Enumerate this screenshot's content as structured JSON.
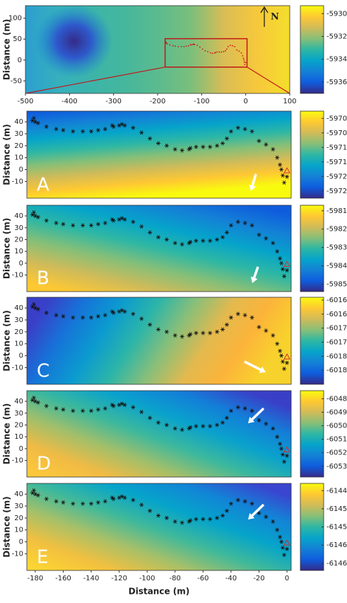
{
  "track": {
    "x": [
      -181,
      -182,
      -180,
      -178,
      -172,
      -165,
      -160,
      -153,
      -146,
      -140,
      -135,
      -130,
      -125,
      -124,
      -120,
      -118,
      -116,
      -110,
      -104,
      -98,
      -92,
      -86,
      -80,
      -75,
      -70,
      -69,
      -65,
      -60,
      -55,
      -50,
      -46,
      -43,
      -40,
      -35,
      -30,
      -25,
      -20,
      -15,
      -10,
      -7,
      -5,
      -4,
      -3,
      0,
      -2
    ],
    "y": [
      43,
      41,
      40,
      39,
      36,
      34,
      33,
      32,
      32,
      32,
      33,
      34,
      37,
      36,
      37,
      38,
      37,
      35,
      31,
      26,
      22,
      20,
      17,
      16,
      17,
      18,
      19,
      19,
      19,
      20,
      22,
      26,
      32,
      35,
      34,
      32,
      24,
      21,
      17,
      10,
      4,
      0,
      -5,
      -6,
      -11
    ]
  },
  "chart_data": [
    {
      "type": "heatmap",
      "ylabel": "Distance (m)",
      "annotation": "N",
      "xlim": [
        -500,
        100
      ],
      "ylim": [
        -80,
        130
      ],
      "xticks": [
        -500,
        -400,
        -300,
        -200,
        -100,
        0,
        100
      ],
      "yticks": [
        100,
        50,
        0,
        -50
      ],
      "zoom_box": {
        "x": [
          -183,
          3
        ],
        "y": [
          -17,
          51
        ]
      },
      "colorbar": {
        "lim": [
          -5937,
          -5929.3
        ],
        "ticks": [
          -5930,
          -5932,
          -5934,
          -5936
        ]
      }
    },
    {
      "type": "heatmap",
      "label": "A",
      "ylabel": "Distance (m)",
      "xlim": [
        -186,
        3
      ],
      "ylim": [
        -24,
        49
      ],
      "yticks": [
        40,
        30,
        20,
        10,
        0,
        -10
      ],
      "triangle": {
        "x": 0,
        "y": -1
      },
      "colorbar": {
        "lim": [
          -5972.75,
          -5969.75
        ],
        "ticks": [
          -5970,
          -5970.5,
          -5971,
          -5971.5,
          -5972,
          -5972.5
        ]
      }
    },
    {
      "type": "heatmap",
      "label": "B",
      "ylabel": "Distance (m)",
      "xlim": [
        -186,
        3
      ],
      "ylim": [
        -24,
        49
      ],
      "yticks": [
        40,
        30,
        20,
        10,
        0,
        -10
      ],
      "triangle": {
        "x": 0,
        "y": -1
      },
      "colorbar": {
        "lim": [
          -5985.4,
          -5980.7
        ],
        "ticks": [
          -5981,
          -5982,
          -5983,
          -5984,
          -5985
        ]
      }
    },
    {
      "type": "heatmap",
      "label": "C",
      "ylabel": "Distance (m)",
      "xlim": [
        -186,
        3
      ],
      "ylim": [
        -24,
        49
      ],
      "yticks": [
        40,
        30,
        20,
        10,
        0,
        -10
      ],
      "triangle": {
        "x": 0,
        "y": -1
      },
      "colorbar": {
        "lim": [
          -6019,
          -6015.9
        ],
        "ticks": [
          -6016,
          -6016.5,
          -6017,
          -6017.5,
          -6018,
          -6018.5
        ]
      }
    },
    {
      "type": "heatmap",
      "label": "D",
      "ylabel": "Distance (m)",
      "xlim": [
        -186,
        3
      ],
      "ylim": [
        -24,
        49
      ],
      "yticks": [
        40,
        30,
        20,
        10,
        0,
        -10
      ],
      "triangle": {
        "x": 0,
        "y": -1
      },
      "colorbar": {
        "lim": [
          -6053.8,
          -6047.4
        ],
        "ticks": [
          -6048,
          -6049,
          -6050,
          -6051,
          -6052,
          -6053
        ]
      }
    },
    {
      "type": "heatmap",
      "label": "E",
      "ylabel": "Distance (m)",
      "xlabel": "Distance (m)",
      "xlim": [
        -186,
        3
      ],
      "ylim": [
        -24,
        49
      ],
      "yticks": [
        40,
        30,
        20,
        10,
        0,
        -10
      ],
      "xticks": [
        -180,
        -160,
        -140,
        -120,
        -100,
        -80,
        -60,
        -40,
        -20,
        0
      ],
      "triangle": {
        "x": 0,
        "y": -1
      },
      "colorbar": {
        "lim": [
          -6146.7,
          -6144.3
        ],
        "ticks": [
          -6144.5,
          -6145,
          -6145.5,
          -6146,
          -6146.5
        ]
      }
    }
  ]
}
